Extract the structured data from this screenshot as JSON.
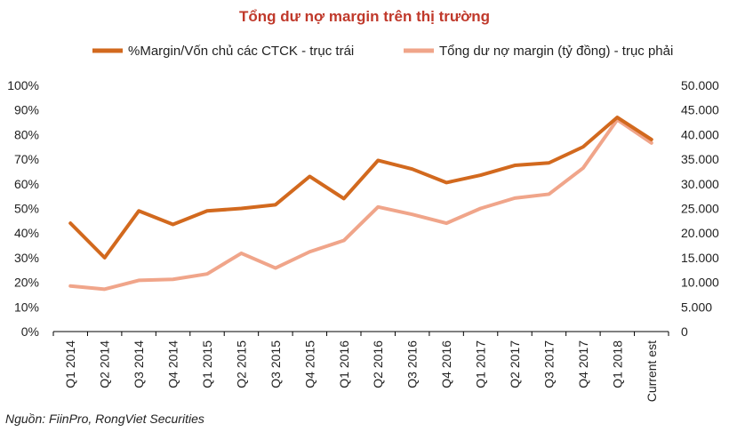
{
  "chart_data": {
    "type": "line",
    "title": "Tổng dư nợ margin trên thị trường",
    "source": "Nguồn: FiinPro, RongViet Securities",
    "categories": [
      "Q1 2014",
      "Q2 2014",
      "Q3 2014",
      "Q4 2014",
      "Q1 2015",
      "Q2 2015",
      "Q3 2015",
      "Q4 2015",
      "Q1 2016",
      "Q2 2016",
      "Q3 2016",
      "Q4 2016",
      "Q1 2017",
      "Q2 2017",
      "Q3 2017",
      "Q4 2017",
      "Q1 2018",
      "Current est"
    ],
    "y_left": {
      "ylim": [
        0,
        100
      ],
      "ticks": [
        0,
        10,
        20,
        30,
        40,
        50,
        60,
        70,
        80,
        90,
        100
      ],
      "tick_labels": [
        "0%",
        "10%",
        "20%",
        "30%",
        "40%",
        "50%",
        "60%",
        "70%",
        "80%",
        "90%",
        "100%"
      ]
    },
    "y_right": {
      "ylim": [
        0,
        50000
      ],
      "ticks": [
        0,
        5000,
        10000,
        15000,
        20000,
        25000,
        30000,
        35000,
        40000,
        45000,
        50000
      ],
      "tick_labels": [
        "0",
        "5.000",
        "10.000",
        "15.000",
        "20.000",
        "25.000",
        "30.000",
        "35.000",
        "40.000",
        "45.000",
        "50.000"
      ]
    },
    "legend_position": "top",
    "grid": false,
    "series": [
      {
        "name": "%Margin/Vốn chủ các CTCK - trục trái",
        "axis": "left",
        "color": "#d2691e",
        "values": [
          44,
          30,
          49,
          43.5,
          49,
          50,
          51.5,
          63,
          54,
          69.5,
          66,
          60.5,
          63.5,
          67.5,
          68.5,
          75,
          87,
          78
        ]
      },
      {
        "name": "Tổng dư nợ margin (tỷ đồng) - trục phải",
        "axis": "right",
        "color": "#f0a58a",
        "values": [
          9250,
          8600,
          10400,
          10600,
          11700,
          15900,
          12900,
          16200,
          18500,
          25300,
          23800,
          22000,
          25000,
          27100,
          27900,
          33200,
          43000,
          38300
        ]
      }
    ]
  }
}
